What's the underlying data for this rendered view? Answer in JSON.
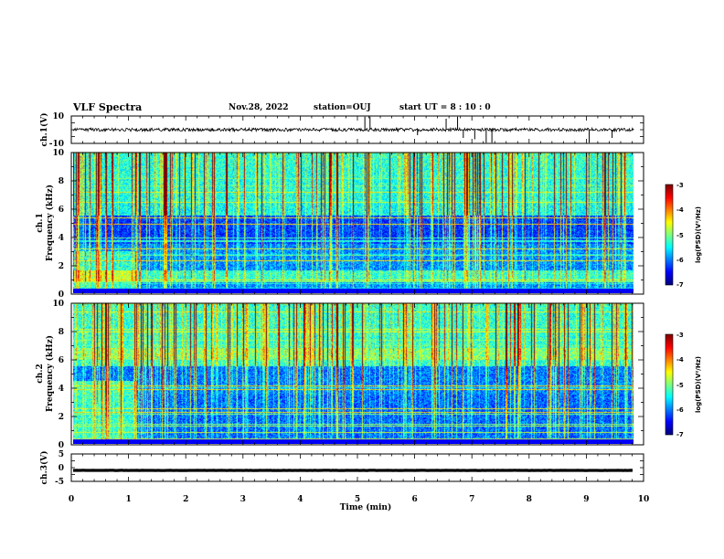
{
  "header": {
    "title": "VLF Spectra",
    "date": "Nov.28, 2022",
    "station": "station=OUJ",
    "start": "start  UT =   8  : 10 : 0"
  },
  "chart_data": [
    {
      "type": "line",
      "panel": "ch1-waveform",
      "ylabel": "ch.1(V)",
      "ylim": [
        -10,
        10
      ],
      "yticks": [
        "10",
        "-10"
      ],
      "baseline": 0,
      "noise_amplitude": 1.2,
      "spikes": [
        {
          "x": 5.13,
          "y": 9.5
        },
        {
          "x": 5.22,
          "y": 9.5
        },
        {
          "x": 6.05,
          "y": -4
        },
        {
          "x": 6.55,
          "y": 8
        },
        {
          "x": 6.75,
          "y": 9.5
        },
        {
          "x": 6.85,
          "y": -6
        },
        {
          "x": 7.05,
          "y": -7
        },
        {
          "x": 7.25,
          "y": -9.5
        },
        {
          "x": 7.35,
          "y": -9.5
        },
        {
          "x": 9.05,
          "y": -9.5
        },
        {
          "x": 9.45,
          "y": -6
        }
      ]
    },
    {
      "type": "heatmap",
      "panel": "ch1-spectrogram",
      "ylabel_line1": "ch.1",
      "ylabel_line2": "Frequency (kHz)",
      "ylim": [
        0,
        10
      ],
      "yticks": [
        "0",
        "2",
        "4",
        "6",
        "8",
        "10"
      ],
      "zlim": [
        -7,
        -3
      ],
      "colorbar_ticks": [
        "-3",
        "-4",
        "-5",
        "-6",
        "-7"
      ],
      "colorbar_label": "log(PSD)(V²/Hz)"
    },
    {
      "type": "heatmap",
      "panel": "ch2-spectrogram",
      "ylabel_line1": "ch.2",
      "ylabel_line2": "Frequency (kHz)",
      "ylim": [
        0,
        10
      ],
      "yticks": [
        "0",
        "2",
        "4",
        "6",
        "8",
        "10"
      ],
      "zlim": [
        -7,
        -3
      ],
      "colorbar_ticks": [
        "-3",
        "-4",
        "-5",
        "-6",
        "-7"
      ],
      "colorbar_label": "log(PSD)(V²/Hz)"
    },
    {
      "type": "line",
      "panel": "ch3-waveform",
      "ylabel": "ch.3(V)",
      "ylim": [
        -5,
        5
      ],
      "yticks": [
        "5",
        "0",
        "-5"
      ],
      "baseline": -1,
      "noise_amplitude": 0.3
    }
  ],
  "xaxis": {
    "label": "Time (min)",
    "xlim": [
      0,
      10
    ],
    "ticks": [
      "0",
      "1",
      "2",
      "3",
      "4",
      "5",
      "6",
      "7",
      "8",
      "9",
      "10"
    ],
    "data_end": 9.83
  }
}
